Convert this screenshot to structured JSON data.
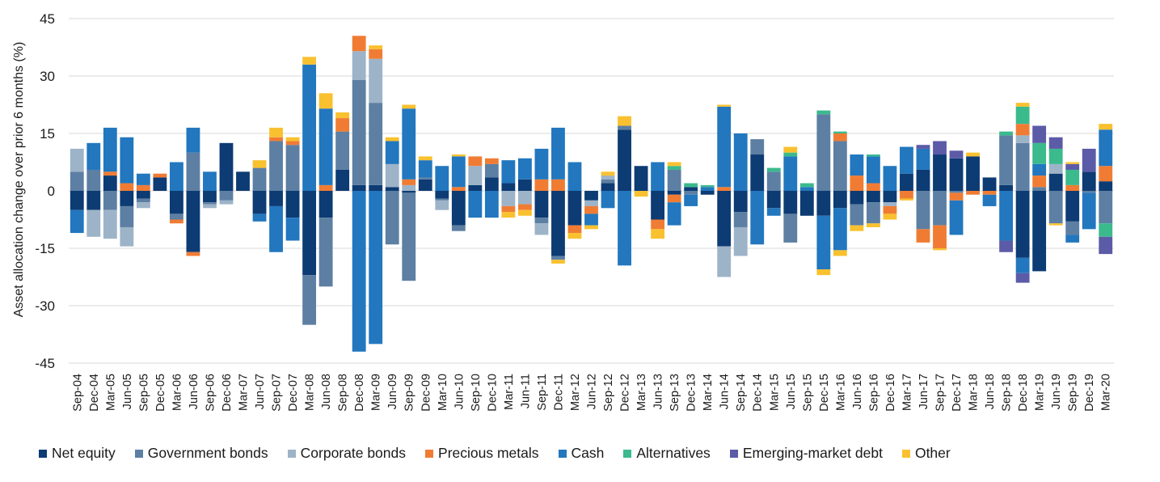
{
  "chart_data": {
    "type": "bar",
    "stacked": true,
    "title": "",
    "xlabel": "",
    "ylabel": "Asset allocation change over prior 6 months (%)",
    "ylim": [
      -45,
      45
    ],
    "yticks": [
      45,
      30,
      15,
      0,
      -15,
      -30,
      -45
    ],
    "grid": true,
    "legend_position": "bottom",
    "categories": [
      "Sep-04",
      "Dec-04",
      "Mar-05",
      "Jun-05",
      "Sep-05",
      "Dec-05",
      "Mar-06",
      "Jun-06",
      "Sep-06",
      "Dec-06",
      "Mar-07",
      "Jun-07",
      "Sep-07",
      "Dec-07",
      "Mar-08",
      "Jun-08",
      "Sep-08",
      "Dec-08",
      "Mar-09",
      "Jun-09",
      "Sep-09",
      "Dec-09",
      "Mar-10",
      "Jun-10",
      "Sep-10",
      "Dec-10",
      "Mar-11",
      "Jun-11",
      "Sep-11",
      "Dec-11",
      "Mar-12",
      "Jun-12",
      "Sep-12",
      "Dec-12",
      "Mar-13",
      "Jun-13",
      "Sep-13",
      "Dec-13",
      "Mar-14",
      "Jun-14",
      "Sep-14",
      "Dec-14",
      "Mar-15",
      "Jun-15",
      "Sep-15",
      "Dec-15",
      "Mar-16",
      "Jun-16",
      "Sep-16",
      "Dec-16",
      "Mar-17",
      "Jun-17",
      "Sep-17",
      "Dec-17",
      "Mar-18",
      "Jun-18",
      "Sep-18",
      "Dec-18",
      "Mar-19",
      "Jun-19",
      "Sep-19",
      "Dec-19",
      "Mar-20"
    ],
    "series": [
      {
        "name": "Net equity",
        "color": "#0d3b73",
        "values": [
          -5,
          -5,
          4,
          -4,
          -2,
          3.5,
          -6,
          -16,
          -3,
          12.5,
          5,
          -6,
          -4,
          -7,
          -22,
          -7,
          5.5,
          1.5,
          1.5,
          1,
          -0.5,
          3,
          -2,
          -9,
          1.5,
          3.5,
          2,
          3,
          -7,
          -17,
          -9,
          -2.5,
          2,
          16,
          6.5,
          -7.5,
          -1,
          1,
          -1,
          -14.5,
          -5.5,
          9.5,
          -4.5,
          -6,
          -6.5,
          -6.5,
          -4.5,
          -3.5,
          -3,
          -3,
          4.5,
          5.5,
          9.5,
          8.5,
          9,
          3.5,
          1.5,
          -17.5,
          -21,
          4.5,
          -8,
          5,
          2.5
        ]
      },
      {
        "name": "Government bonds",
        "color": "#5d7fa3",
        "values": [
          5,
          5.5,
          -5,
          -5.5,
          -1,
          0,
          -1.5,
          10,
          -0.5,
          -2.5,
          0,
          6,
          13,
          12,
          -13,
          -18,
          10,
          27.5,
          21.5,
          -14,
          -23,
          0.5,
          -0.5,
          -1.5,
          0,
          3.5,
          0,
          0,
          -1.5,
          -1,
          0,
          0,
          1,
          1,
          0,
          0,
          5.5,
          -1,
          0,
          0,
          -4,
          4,
          5,
          -7.5,
          0,
          20,
          13,
          -5.5,
          -5.5,
          0,
          0,
          -10,
          -9,
          -0.5,
          0,
          0,
          13,
          12.5,
          1,
          -8.5,
          -3.5,
          -0.5,
          -8.5
        ]
      },
      {
        "name": "Corporate bonds",
        "color": "#9db3c8",
        "values": [
          6,
          -7,
          -7.5,
          -5,
          -1.5,
          0,
          0,
          0,
          -1,
          -1,
          0,
          0,
          0,
          0,
          0,
          0,
          0,
          7.5,
          11.5,
          6,
          1.5,
          0,
          -2.5,
          0,
          5,
          0,
          -4,
          -3.5,
          -3,
          0,
          0,
          -1.5,
          1,
          0,
          0,
          0,
          0,
          0,
          0,
          -8,
          -7.5,
          0,
          0,
          0,
          0,
          0,
          0,
          0,
          0,
          -1,
          0,
          0,
          0,
          0,
          0,
          0,
          0,
          2,
          0,
          2.5,
          0,
          0,
          0
        ]
      },
      {
        "name": "Precious metals",
        "color": "#f07c34",
        "values": [
          0,
          0,
          1,
          2,
          1.5,
          1,
          -1,
          -1,
          0,
          0,
          0,
          0,
          1,
          1,
          0,
          1.5,
          3.5,
          4,
          2.5,
          0,
          1.5,
          0,
          0,
          1,
          2.5,
          1.5,
          -1.5,
          -1.5,
          3,
          3,
          -2,
          -2,
          0,
          0,
          0,
          -2.5,
          -2,
          0,
          0,
          1,
          0,
          0,
          0,
          0,
          0,
          0,
          2,
          4,
          2,
          -2,
          -2,
          -3.5,
          -6,
          -2,
          -1,
          -1,
          0,
          3,
          3,
          0,
          1.5,
          0,
          4
        ]
      },
      {
        "name": "Cash",
        "color": "#2277be",
        "values": [
          -6,
          7,
          11.5,
          12,
          3,
          0,
          7.5,
          6.5,
          5,
          0,
          0,
          -2,
          -12,
          -6,
          33,
          20,
          0,
          -42,
          -40,
          6,
          18.5,
          4.5,
          6.5,
          8,
          -7,
          -7,
          6,
          5.5,
          8,
          13.5,
          7.5,
          -3,
          -4.5,
          -19.5,
          0,
          7.5,
          -6,
          -3,
          1,
          21,
          15,
          -14,
          -2,
          9,
          1,
          -14,
          -11,
          5.5,
          7,
          6.5,
          7,
          5.5,
          0,
          -9,
          0,
          -3,
          -13,
          -4,
          3,
          0,
          -2,
          -9.5,
          9.5
        ]
      },
      {
        "name": "Alternatives",
        "color": "#3aba8d",
        "values": [
          0,
          0,
          0,
          0,
          0,
          0,
          0,
          0,
          0,
          0,
          0,
          0,
          0,
          0,
          0,
          0,
          0,
          0,
          0,
          0,
          0,
          0,
          0,
          0,
          0,
          0,
          0,
          0,
          0,
          0,
          0,
          0,
          0,
          0,
          0,
          0,
          1,
          1,
          0.5,
          0,
          0,
          0,
          1,
          1,
          1,
          1,
          0.5,
          0,
          0.5,
          0,
          0,
          0,
          0,
          0,
          0,
          0,
          1,
          4.5,
          5.5,
          4,
          4,
          0,
          -3.5
        ]
      },
      {
        "name": "Emerging-market debt",
        "color": "#5b5ba8",
        "values": [
          0,
          0,
          0,
          0,
          0,
          0,
          0,
          0,
          0,
          0,
          0,
          0,
          0,
          0,
          0,
          0,
          0,
          0,
          0,
          0,
          0,
          0,
          0,
          0,
          0,
          0,
          0,
          0,
          0,
          0,
          0,
          0,
          0,
          0,
          0,
          0,
          0,
          0,
          0,
          0,
          0,
          0,
          0,
          0,
          0,
          0,
          0,
          0,
          0,
          0,
          0,
          1,
          3.5,
          2,
          0,
          0,
          -3,
          -2.5,
          4.5,
          3,
          1.5,
          6,
          -4.5
        ]
      },
      {
        "name": "Other",
        "color": "#f9c12f",
        "values": [
          0,
          0,
          0,
          0,
          0,
          0,
          0,
          0,
          0,
          0,
          0,
          2,
          2.5,
          1,
          2,
          4,
          1.5,
          0,
          1,
          1,
          1,
          1,
          0,
          0.5,
          0,
          0,
          -1.5,
          -1.5,
          0,
          -1,
          -1.5,
          -1,
          1,
          2.5,
          -1.5,
          -2.5,
          1,
          0,
          0,
          0.5,
          0,
          0,
          0,
          1.5,
          0,
          -1.5,
          -1.5,
          -1.5,
          -1,
          -1.5,
          -0.5,
          0,
          -0.5,
          0,
          1,
          0,
          0,
          1,
          0,
          -0.5,
          0.5,
          0,
          1.5
        ]
      }
    ]
  }
}
